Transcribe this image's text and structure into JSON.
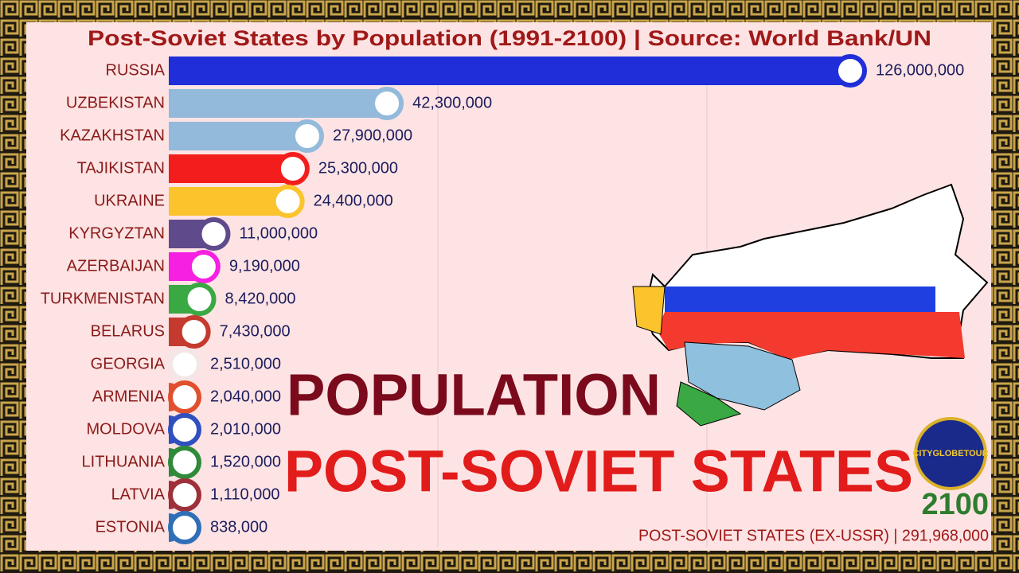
{
  "chart_data": {
    "type": "bar",
    "orientation": "horizontal",
    "title": "Post-Soviet States by Population (1991-2100) | Source: World Bank/UN",
    "categories": [
      "RUSSIA",
      "UZBEKISTAN",
      "KAZAKHSTAN",
      "TAJIKISTAN",
      "UKRAINE",
      "KYRGYZTAN",
      "AZERBAIJAN",
      "TURKMENISTAN",
      "BELARUS",
      "GEORGIA",
      "ARMENIA",
      "MOLDOVA",
      "LITHUANIA",
      "LATVIA",
      "ESTONIA"
    ],
    "values": [
      126000000,
      42300000,
      27900000,
      25300000,
      24400000,
      11000000,
      9190000,
      8420000,
      7430000,
      2510000,
      2040000,
      2010000,
      1520000,
      1110000,
      838000
    ],
    "value_labels": [
      "126,000,000",
      "42,300,000",
      "27,900,000",
      "25,300,000",
      "24,400,000",
      "11,000,000",
      "9,190,000",
      "8,420,000",
      "7,430,000",
      "2,510,000",
      "2,040,000",
      "2,010,000",
      "1,520,000",
      "1,110,000",
      "838,000"
    ],
    "colors": [
      "#1f2ed8",
      "#93badb",
      "#93badb",
      "#f41d1d",
      "#fbc42c",
      "#5f4b8b",
      "#f520e2",
      "#3aa843",
      "#c53a2e",
      "#f4e6e6",
      "#e0502e",
      "#3050c0",
      "#2f8a3a",
      "#9e3039",
      "#2f6fb8"
    ],
    "xlim": [
      0,
      126000000
    ],
    "overlay_title": [
      "POPULATION",
      "POST-SOVIET STATES"
    ],
    "year": "2100",
    "footer": "POST-SOVIET STATES (EX-USSR) | 291,968,000",
    "logo_text": "CITYGLOBETOUR"
  }
}
